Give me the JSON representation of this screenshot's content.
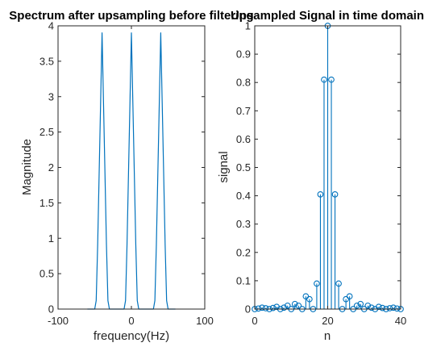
{
  "colors": {
    "series": "#0072BD",
    "axis": "#262626",
    "background": "#ffffff"
  },
  "chart_data": [
    {
      "type": "line",
      "title": "Spectrum after upsampling before filtering",
      "xlabel": "frequency(Hz)",
      "ylabel": "Magnitude",
      "xlim": [
        -100,
        100
      ],
      "ylim": [
        0,
        4
      ],
      "xticks": [
        -100,
        0,
        100
      ],
      "xtick_labels": [
        "-100",
        "0",
        "100"
      ],
      "yticks": [
        0,
        0.5,
        1,
        1.5,
        2,
        2.5,
        3,
        3.5,
        4
      ],
      "ytick_labels": [
        "0",
        "0.5",
        "1",
        "1.5",
        "2",
        "2.5",
        "3",
        "3.5",
        "4"
      ],
      "grid": false,
      "box": true,
      "series": [
        {
          "x": [
            -60,
            -50,
            -48,
            -46,
            -44,
            -42,
            -40,
            -38,
            -36,
            -34,
            -32,
            -30,
            -10,
            -8,
            -6,
            -4,
            -2,
            0,
            2,
            4,
            6,
            8,
            10,
            30,
            32,
            34,
            36,
            38,
            40,
            42,
            44,
            46,
            48,
            50,
            60
          ],
          "y": [
            0,
            0,
            0.12,
            0.9,
            1.9,
            2.9,
            3.9,
            2.9,
            1.9,
            0.9,
            0.12,
            0,
            0,
            0.12,
            0.9,
            1.9,
            2.9,
            3.9,
            2.9,
            1.9,
            0.9,
            0.12,
            0,
            0,
            0.12,
            0.9,
            1.9,
            2.9,
            3.9,
            2.9,
            1.9,
            0.9,
            0.12,
            0,
            0
          ]
        }
      ]
    },
    {
      "type": "stem",
      "title": "Upsampled Signal in time domain",
      "xlabel": "n",
      "ylabel": "signal",
      "xlim": [
        0,
        40
      ],
      "ylim": [
        0,
        1
      ],
      "xticks": [
        0,
        20,
        40
      ],
      "xtick_labels": [
        "0",
        "20",
        "40"
      ],
      "yticks": [
        0,
        0.1,
        0.2,
        0.3,
        0.4,
        0.5,
        0.6,
        0.7,
        0.8,
        0.9,
        1
      ],
      "ytick_labels": [
        "0",
        "0.1",
        "0.2",
        "0.3",
        "0.4",
        "0.5",
        "0.6",
        "0.7",
        "0.8",
        "0.9",
        "1"
      ],
      "grid": false,
      "box": true,
      "series": [
        {
          "x": [
            0,
            1,
            2,
            3,
            4,
            5,
            6,
            7,
            8,
            9,
            10,
            11,
            12,
            13,
            14,
            15,
            16,
            17,
            18,
            19,
            20,
            21,
            22,
            23,
            24,
            25,
            26,
            27,
            28,
            29,
            30,
            31,
            32,
            33,
            34,
            35,
            36,
            37,
            38,
            39,
            40
          ],
          "y": [
            0.0,
            0.002,
            0.005,
            0.003,
            0.0,
            0.004,
            0.008,
            0.0,
            0.005,
            0.012,
            0.0,
            0.018,
            0.012,
            0.0,
            0.045,
            0.035,
            0.0,
            0.09,
            0.405,
            0.81,
            1.0,
            0.81,
            0.405,
            0.09,
            0.0,
            0.035,
            0.045,
            0.0,
            0.012,
            0.018,
            0.0,
            0.012,
            0.005,
            0.0,
            0.008,
            0.004,
            0.0,
            0.003,
            0.005,
            0.002,
            0.0
          ]
        }
      ]
    }
  ]
}
